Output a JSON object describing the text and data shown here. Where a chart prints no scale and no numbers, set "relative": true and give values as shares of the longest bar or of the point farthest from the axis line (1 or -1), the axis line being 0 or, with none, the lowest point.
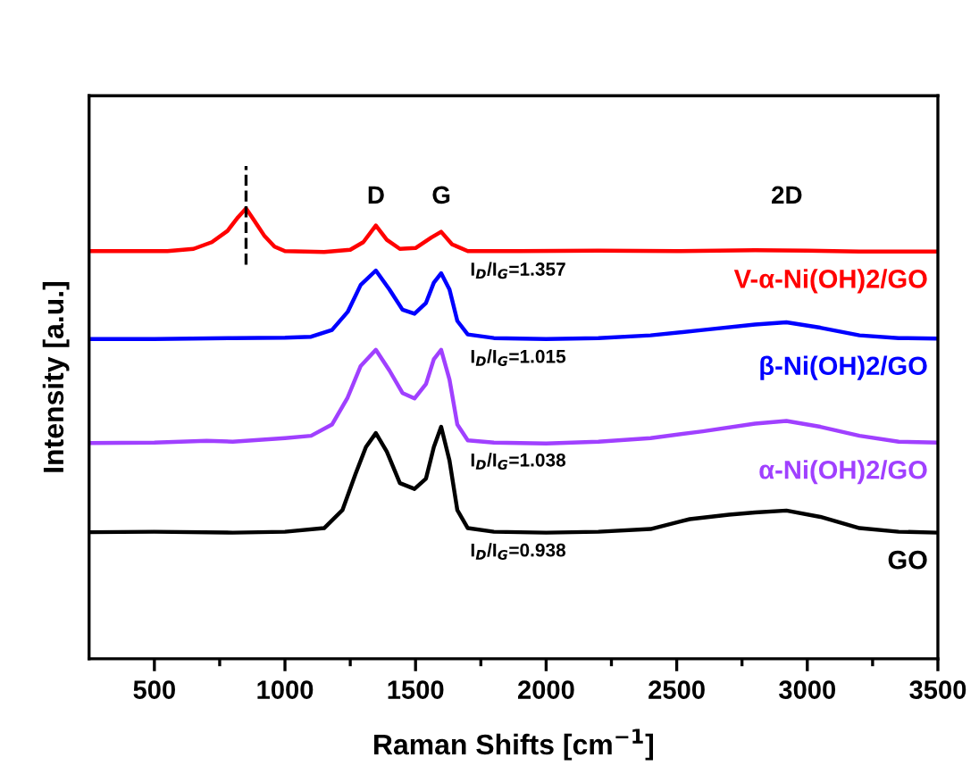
{
  "chart_data": {
    "type": "line",
    "relative": true,
    "xlabel": "Raman Shifts [cm$^{−1}$]",
    "ylabel": "Intensity [a.u.]",
    "xlim": [
      250,
      3500
    ],
    "xticks": [
      500,
      {
        "value": 750,
        "label": null
      },
      1000,
      {
        "value": 1250,
        "label": null
      },
      1500,
      {
        "value": 1750,
        "label": null
      },
      2000,
      {
        "value": 2250,
        "label": null
      },
      2500,
      {
        "value": 2750,
        "label": null
      },
      3000,
      {
        "value": 3250,
        "label": null
      },
      3500
    ],
    "tick_labels": "x",
    "grid": false,
    "legend": false,
    "marker": "none",
    "line_style": "solid",
    "series": [
      {
        "name": "V-α-Ni(OH)2/GO",
        "color": "#ff0000",
        "x": [
          250,
          400,
          550,
          650,
          720,
          780,
          820,
          851,
          880,
          920,
          960,
          1000,
          1150,
          1250,
          1300,
          1348,
          1390,
          1440,
          1500,
          1560,
          1598,
          1640,
          1700,
          1900,
          2200,
          2500,
          2800,
          3000,
          3200,
          3500
        ],
        "values": [
          0.905,
          0.905,
          0.905,
          0.91,
          0.925,
          0.95,
          0.98,
          1.0,
          0.975,
          0.94,
          0.915,
          0.905,
          0.903,
          0.908,
          0.925,
          0.962,
          0.93,
          0.91,
          0.912,
          0.935,
          0.948,
          0.92,
          0.905,
          0.905,
          0.906,
          0.905,
          0.907,
          0.906,
          0.904,
          0.904
        ]
      },
      {
        "name": "β-Ni(OH)2/GO",
        "color": "#0000ff",
        "x": [
          250,
          500,
          800,
          1000,
          1100,
          1180,
          1240,
          1290,
          1348,
          1400,
          1450,
          1496,
          1540,
          1570,
          1598,
          1630,
          1660,
          1700,
          1800,
          2000,
          2200,
          2400,
          2600,
          2800,
          2920,
          3050,
          3200,
          3350,
          3500
        ],
        "values": [
          0.71,
          0.71,
          0.712,
          0.713,
          0.715,
          0.73,
          0.77,
          0.83,
          0.862,
          0.82,
          0.775,
          0.766,
          0.79,
          0.835,
          0.856,
          0.82,
          0.75,
          0.72,
          0.712,
          0.71,
          0.712,
          0.718,
          0.73,
          0.742,
          0.747,
          0.735,
          0.718,
          0.712,
          0.711
        ]
      },
      {
        "name": "α-Ni(OH)2/GO",
        "color": "#a040ff",
        "x": [
          250,
          500,
          700,
          800,
          1000,
          1100,
          1180,
          1240,
          1290,
          1348,
          1400,
          1450,
          1496,
          1540,
          1570,
          1598,
          1630,
          1660,
          1700,
          1800,
          2000,
          2200,
          2400,
          2600,
          2800,
          2920,
          3050,
          3200,
          3350,
          3500
        ],
        "values": [
          0.479,
          0.48,
          0.484,
          0.482,
          0.49,
          0.495,
          0.52,
          0.58,
          0.65,
          0.686,
          0.64,
          0.59,
          0.578,
          0.61,
          0.665,
          0.686,
          0.62,
          0.52,
          0.485,
          0.48,
          0.478,
          0.482,
          0.49,
          0.505,
          0.522,
          0.528,
          0.515,
          0.495,
          0.482,
          0.48
        ]
      },
      {
        "name": "GO",
        "color": "#000000",
        "x": [
          250,
          500,
          800,
          1000,
          1150,
          1220,
          1270,
          1310,
          1348,
          1390,
          1440,
          1496,
          1540,
          1570,
          1598,
          1630,
          1660,
          1700,
          1800,
          2000,
          2200,
          2400,
          2550,
          2700,
          2800,
          2920,
          3050,
          3200,
          3350,
          3500
        ],
        "values": [
          0.281,
          0.282,
          0.28,
          0.282,
          0.29,
          0.33,
          0.41,
          0.47,
          0.501,
          0.46,
          0.39,
          0.377,
          0.4,
          0.47,
          0.515,
          0.44,
          0.33,
          0.29,
          0.282,
          0.28,
          0.282,
          0.288,
          0.31,
          0.32,
          0.325,
          0.329,
          0.315,
          0.29,
          0.282,
          0.28
        ]
      }
    ],
    "ref_lines": [
      {
        "axis": "x",
        "value": 851,
        "color": "#000000",
        "line_style": "dashed"
      }
    ],
    "annotations": [
      "D",
      "G",
      "2D",
      "I$_{D}$/I$_{G}$=1.357",
      "I$_{D}$/I$_{G}$=1.015",
      "I$_{D}$/I$_{G}$=1.038",
      "I$_{D}$/I$_{G}$=0.938"
    ]
  }
}
